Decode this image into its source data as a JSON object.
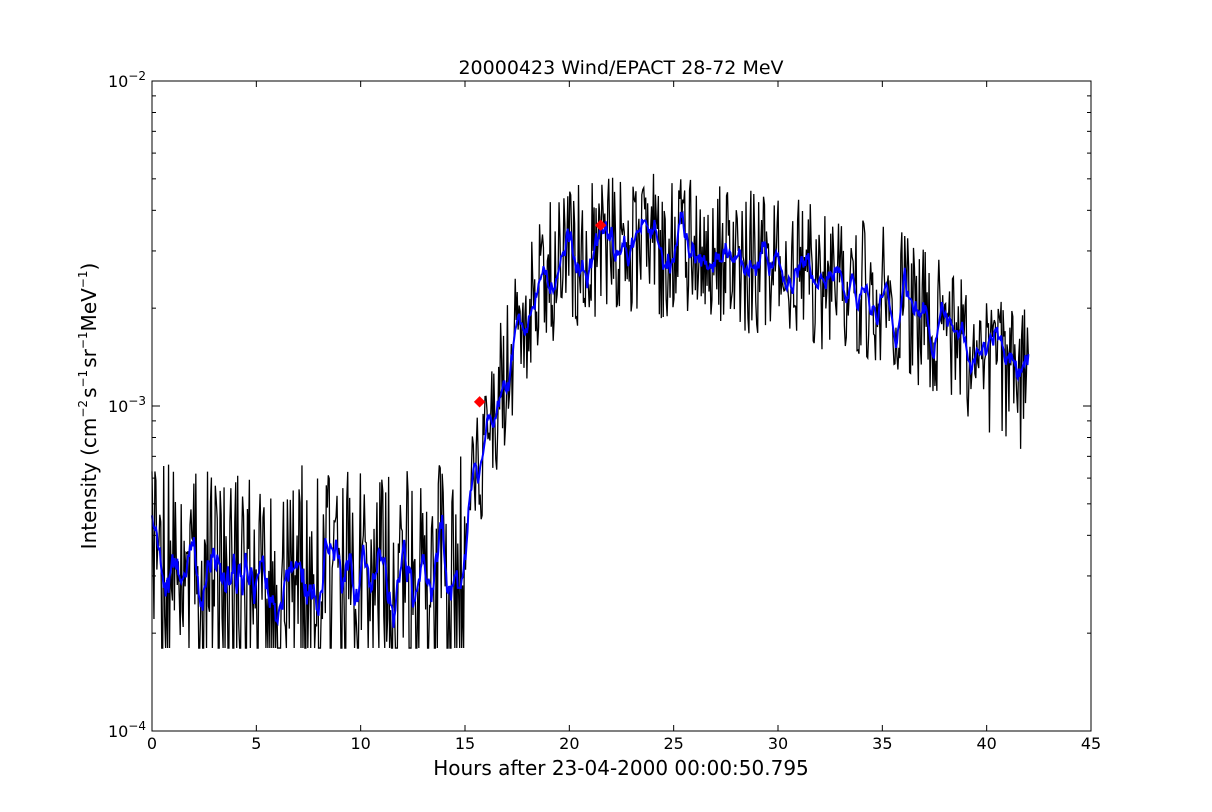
{
  "chart_data": {
    "type": "line",
    "title": "20000423 Wind/EPACT 28-72 MeV",
    "xlabel": "Hours after 23-04-2000 00:00:50.795",
    "ylabel": {
      "base": "Intensity (cm",
      "exp1": "−2",
      "s": "s",
      "exp2": "−1",
      "sr": "sr",
      "exp3": "−1",
      "mev": "MeV",
      "exp4": "−1",
      "close": ")"
    },
    "xlim": [
      0,
      45
    ],
    "ylim": [
      0.0001,
      0.01
    ],
    "yscale": "log",
    "grid": false,
    "x_ticks": [
      0,
      5,
      10,
      15,
      20,
      25,
      30,
      35,
      40,
      45
    ],
    "y_ticks": [
      {
        "value": 0.0001,
        "base": "10",
        "exp": "−4"
      },
      {
        "value": 0.001,
        "base": "10",
        "exp": "−3"
      },
      {
        "value": 0.01,
        "base": "10",
        "exp": "−2"
      }
    ],
    "series": [
      {
        "role": "raw",
        "color": "#000000",
        "profile_hours": [
          0,
          14.3,
          15.3,
          17.5,
          19,
          21,
          24,
          28,
          32,
          36,
          38,
          40,
          42
        ],
        "profile_values": [
          0.00031,
          0.00031,
          0.0006,
          0.0016,
          0.0026,
          0.0031,
          0.0031,
          0.0028,
          0.0025,
          0.0021,
          0.0017,
          0.0014,
          0.0012
        ],
        "x_end": 42,
        "floor_value": 0.00018
      },
      {
        "role": "smoothed",
        "color": "#0000ff",
        "profile_hours": [
          0,
          14.3,
          15.3,
          17.5,
          19,
          21,
          24,
          28,
          32,
          36,
          38,
          40,
          42
        ],
        "profile_values": [
          0.00031,
          0.00031,
          0.0006,
          0.0016,
          0.0026,
          0.0031,
          0.0031,
          0.0028,
          0.0025,
          0.0021,
          0.0017,
          0.0014,
          0.0012
        ],
        "x_end": 42
      }
    ],
    "markers": [
      {
        "x": 15.7,
        "y": 0.00103,
        "color": "#ff0000",
        "shape": "diamond"
      },
      {
        "x": 21.5,
        "y": 0.0036,
        "color": "#ff0000",
        "shape": "diamond"
      }
    ]
  }
}
